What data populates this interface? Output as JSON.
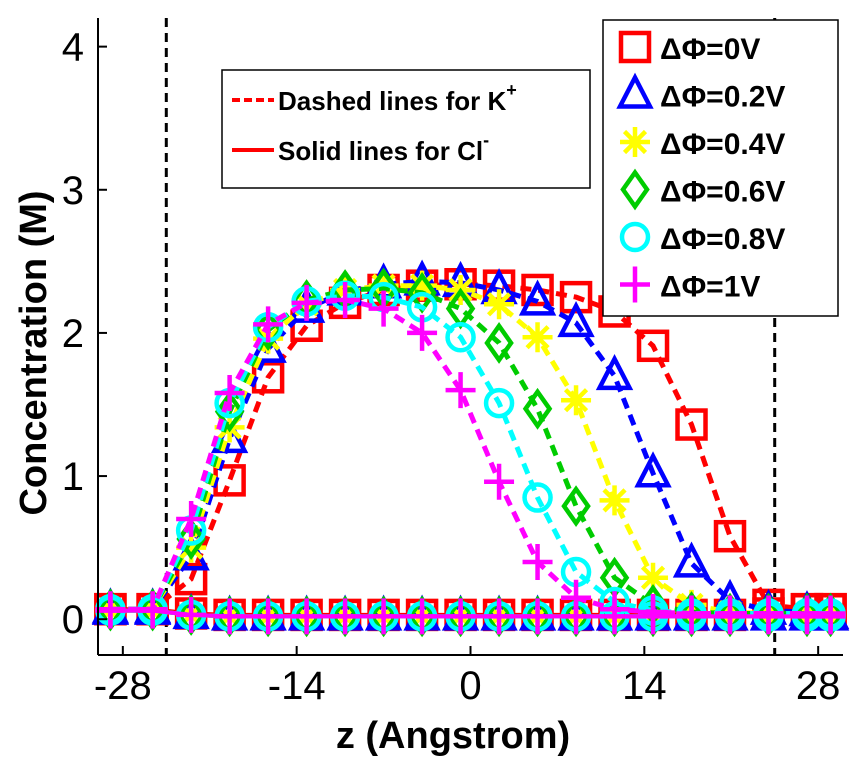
{
  "chart_data": {
    "type": "line",
    "title": "",
    "xlabel": "z (Angstrom)",
    "ylabel": "Concentration (M)",
    "xlim": [
      -30,
      30
    ],
    "ylim": [
      -0.25,
      4.2
    ],
    "xticks": [
      -28,
      -14,
      0,
      14,
      28
    ],
    "xtick_labels": [
      "-28",
      "-14",
      "0",
      "14",
      "28"
    ],
    "yticks": [
      0,
      1,
      2,
      3,
      4
    ],
    "ytick_labels": [
      "0",
      "1",
      "2",
      "3",
      "4"
    ],
    "boundary_lines": [
      -24.5,
      24.5
    ],
    "line_style_note": {
      "dashed_label": "Dashed lines for K",
      "dashed_sup": "+",
      "solid_label": "Solid lines for Cl",
      "solid_sup": "-",
      "color": "#ff0000"
    },
    "series": [
      {
        "name": "ΔΦ=0V",
        "color": "#ff0000",
        "marker": "square",
        "k_x": [
          -29,
          -25.6,
          -22.5,
          -19.4,
          -16.3,
          -13.2,
          -10.1,
          -7,
          -3.9,
          -0.8,
          2.3,
          5.4,
          8.5,
          11.6,
          14.7,
          17.8,
          20.9,
          24,
          27.1,
          29
        ],
        "k_y": [
          0.07,
          0.07,
          0.28,
          0.97,
          1.69,
          2.05,
          2.21,
          2.3,
          2.33,
          2.34,
          2.33,
          2.3,
          2.25,
          2.15,
          1.91,
          1.36,
          0.58,
          0.1,
          0.07,
          0.07
        ],
        "cl_x": [
          -29,
          -25.6,
          -22.5,
          -19.4,
          -16.3,
          -13.2,
          -10.1,
          -7,
          -3.9,
          -0.8,
          2.3,
          5.4,
          8.5,
          11.6,
          14.7,
          17.8,
          20.9,
          24,
          27.1,
          29
        ],
        "cl_y": [
          0.07,
          0.07,
          0.04,
          0.03,
          0.03,
          0.03,
          0.03,
          0.03,
          0.03,
          0.03,
          0.03,
          0.03,
          0.03,
          0.03,
          0.03,
          0.03,
          0.03,
          0.04,
          0.07,
          0.07
        ]
      },
      {
        "name": "ΔΦ=0.2V",
        "color": "#0000ff",
        "marker": "triangle",
        "k_x": [
          -29,
          -25.6,
          -22.5,
          -19.4,
          -16.3,
          -13.2,
          -10.1,
          -7,
          -3.9,
          -0.8,
          2.3,
          5.4,
          8.5,
          11.6,
          14.7,
          17.8,
          20.9,
          24,
          27.1,
          29
        ],
        "k_y": [
          0.07,
          0.07,
          0.44,
          1.26,
          1.89,
          2.17,
          2.29,
          2.34,
          2.36,
          2.35,
          2.3,
          2.22,
          2.07,
          1.7,
          1.02,
          0.39,
          0.13,
          0.06,
          0.05,
          0.03
        ],
        "cl_x": [
          -29,
          -25.6,
          -22.5,
          -19.4,
          -16.3,
          -13.2,
          -10.1,
          -7,
          -3.9,
          -0.8,
          2.3,
          5.4,
          8.5,
          11.6,
          14.7,
          17.8,
          20.9,
          24,
          27.1,
          29
        ],
        "cl_y": [
          0.06,
          0.06,
          0.03,
          0.02,
          0.02,
          0.02,
          0.02,
          0.02,
          0.02,
          0.02,
          0.02,
          0.02,
          0.02,
          0.02,
          0.02,
          0.02,
          0.02,
          0.02,
          0.02,
          0.02
        ]
      },
      {
        "name": "ΔΦ=0.4V",
        "color": "#ffff00",
        "marker": "asterisk",
        "k_x": [
          -29,
          -25.6,
          -22.5,
          -19.4,
          -16.3,
          -13.2,
          -10.1,
          -7,
          -3.9,
          -0.8,
          2.3,
          5.4,
          8.5,
          11.6,
          14.7,
          17.8,
          20.9,
          24,
          27.1,
          29
        ],
        "k_y": [
          0.07,
          0.07,
          0.5,
          1.34,
          1.96,
          2.2,
          2.3,
          2.33,
          2.33,
          2.3,
          2.2,
          1.97,
          1.53,
          0.83,
          0.29,
          0.1,
          0.05,
          0.04,
          0.04,
          0.04
        ],
        "cl_x": [
          -29,
          -25.6,
          -22.5,
          -19.4,
          -16.3,
          -13.2,
          -10.1,
          -7,
          -3.9,
          -0.8,
          2.3,
          5.4,
          8.5,
          11.6,
          14.7,
          17.8,
          20.9,
          24,
          27.1,
          29
        ],
        "cl_y": [
          0.06,
          0.06,
          0.03,
          0.02,
          0.02,
          0.02,
          0.02,
          0.02,
          0.02,
          0.02,
          0.02,
          0.02,
          0.02,
          0.02,
          0.02,
          0.02,
          0.02,
          0.02,
          0.02,
          0.02
        ]
      },
      {
        "name": "ΔΦ=0.6V",
        "color": "#00cc00",
        "marker": "diamond",
        "k_x": [
          -29,
          -25.6,
          -22.5,
          -19.4,
          -16.3,
          -13.2,
          -10.1,
          -7,
          -3.9,
          -0.8,
          2.3,
          5.4,
          8.5,
          11.6,
          14.7,
          17.8,
          20.9,
          24,
          27.1,
          29
        ],
        "k_y": [
          0.07,
          0.07,
          0.56,
          1.45,
          2.02,
          2.23,
          2.3,
          2.31,
          2.28,
          2.17,
          1.93,
          1.47,
          0.79,
          0.29,
          0.1,
          0.05,
          0.04,
          0.04,
          0.04,
          0.04
        ],
        "cl_x": [
          -29,
          -25.6,
          -22.5,
          -19.4,
          -16.3,
          -13.2,
          -10.1,
          -7,
          -3.9,
          -0.8,
          2.3,
          5.4,
          8.5,
          11.6,
          14.7,
          17.8,
          20.9,
          24,
          27.1,
          29
        ],
        "cl_y": [
          0.06,
          0.06,
          0.03,
          0.02,
          0.02,
          0.02,
          0.02,
          0.02,
          0.02,
          0.02,
          0.02,
          0.02,
          0.02,
          0.02,
          0.02,
          0.02,
          0.02,
          0.02,
          0.02,
          0.02
        ]
      },
      {
        "name": "ΔΦ=0.8V",
        "color": "#00ffff",
        "marker": "circle",
        "k_x": [
          -29,
          -25.6,
          -22.5,
          -19.4,
          -16.3,
          -13.2,
          -10.1,
          -7,
          -3.9,
          -0.8,
          2.3,
          5.4,
          8.5,
          11.6,
          14.7,
          17.8,
          20.9,
          24,
          27.1,
          29
        ],
        "k_y": [
          0.07,
          0.07,
          0.62,
          1.51,
          2.04,
          2.22,
          2.26,
          2.25,
          2.18,
          1.97,
          1.51,
          0.85,
          0.33,
          0.12,
          0.06,
          0.04,
          0.04,
          0.04,
          0.04,
          0.04
        ],
        "cl_x": [
          -29,
          -25.6,
          -22.5,
          -19.4,
          -16.3,
          -13.2,
          -10.1,
          -7,
          -3.9,
          -0.8,
          2.3,
          5.4,
          8.5,
          11.6,
          14.7,
          17.8,
          20.9,
          24,
          27.1,
          29
        ],
        "cl_y": [
          0.06,
          0.06,
          0.03,
          0.02,
          0.02,
          0.02,
          0.02,
          0.02,
          0.02,
          0.02,
          0.02,
          0.02,
          0.02,
          0.02,
          0.02,
          0.02,
          0.02,
          0.02,
          0.02,
          0.02
        ]
      },
      {
        "name": "ΔΦ=1V",
        "color": "#ff00ff",
        "marker": "plus",
        "k_x": [
          -29,
          -25.6,
          -22.5,
          -19.4,
          -16.3,
          -13.2,
          -10.1,
          -7,
          -3.9,
          -0.8,
          2.3,
          5.4,
          8.5,
          11.6,
          14.7,
          17.8,
          20.9,
          24,
          27.1,
          29
        ],
        "k_y": [
          0.07,
          0.07,
          0.7,
          1.58,
          2.06,
          2.21,
          2.23,
          2.17,
          2.0,
          1.6,
          0.96,
          0.4,
          0.15,
          0.07,
          0.05,
          0.04,
          0.04,
          0.04,
          0.04,
          0.04
        ],
        "cl_x": [
          -29,
          -25.6,
          -22.5,
          -19.4,
          -16.3,
          -13.2,
          -10.1,
          -7,
          -3.9,
          -0.8,
          2.3,
          5.4,
          8.5,
          11.6,
          14.7,
          17.8,
          20.9,
          24,
          27.1,
          29
        ],
        "cl_y": [
          0.06,
          0.06,
          0.03,
          0.02,
          0.02,
          0.02,
          0.02,
          0.02,
          0.02,
          0.02,
          0.02,
          0.02,
          0.02,
          0.02,
          0.02,
          0.02,
          0.02,
          0.02,
          0.02,
          0.02
        ]
      }
    ]
  }
}
